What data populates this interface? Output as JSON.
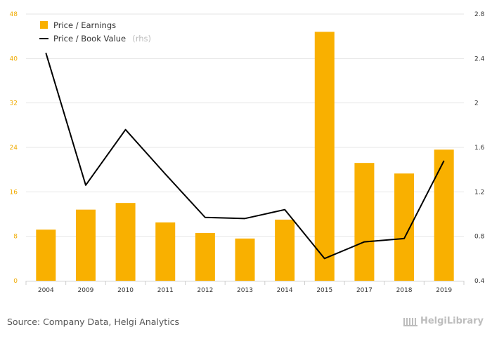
{
  "chart_data": {
    "type": "bar",
    "categories": [
      "2004",
      "2009",
      "2010",
      "2011",
      "2012",
      "2013",
      "2014",
      "2015",
      "2017",
      "2018",
      "2019"
    ],
    "series": [
      {
        "name": "Price / Earnings",
        "axis": "left",
        "kind": "bar",
        "values": [
          9.2,
          12.8,
          14.0,
          10.5,
          8.6,
          7.6,
          11.0,
          44.8,
          21.2,
          19.3,
          23.6
        ]
      },
      {
        "name": "Price / Book Value",
        "suffix": "(rhs)",
        "axis": "right",
        "kind": "line",
        "values": [
          2.45,
          1.26,
          1.76,
          1.36,
          0.97,
          0.96,
          1.04,
          0.6,
          0.75,
          0.78,
          1.48
        ]
      }
    ],
    "y_left": {
      "min": 0,
      "max": 48,
      "ticks": [
        "0",
        "8",
        "16",
        "24",
        "32",
        "40",
        "48"
      ]
    },
    "y_right": {
      "min": 0.4,
      "max": 2.8,
      "ticks": [
        "0.4",
        "0.8",
        "1.2",
        "1.6",
        "2",
        "2.4",
        "2.8"
      ]
    },
    "grid": true,
    "legend": "top-left",
    "colors": {
      "bar": "#f9b000",
      "line": "#000000",
      "left_ticks": "#f0ab00"
    }
  },
  "footer": {
    "source": "Source: Company Data, Helgi Analytics",
    "brand": "HelgiLibrary"
  }
}
